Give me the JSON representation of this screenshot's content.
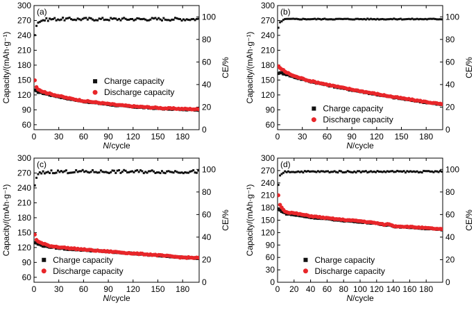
{
  "colors": {
    "charge": "#111111",
    "discharge": "#e8262a",
    "ce": "#111111"
  },
  "chart_data": [
    {
      "type": "scatter",
      "panel_label": "(a)",
      "xlabel_italic": "N",
      "xlabel_rest": "/cycle",
      "ylabel_left": "Capacity/(mAh·g⁻¹)",
      "ylabel_right": "CE/%",
      "xlim": [
        0,
        200
      ],
      "ylim_left": [
        50,
        300
      ],
      "ylim_right": [
        0,
        110
      ],
      "xticks": [
        0,
        30,
        60,
        90,
        120,
        150,
        180
      ],
      "yticks_left": [
        60,
        90,
        120,
        150,
        180,
        210,
        240,
        270,
        300
      ],
      "yticks_right": [
        0,
        20,
        40,
        60,
        80,
        100
      ],
      "legend": {
        "position": "center",
        "charge": "Charge capacity",
        "discharge": "Discharge capacity"
      },
      "series": [
        {
          "name": "Charge capacity",
          "x": [
            1,
            5,
            10,
            20,
            40,
            60,
            80,
            100,
            120,
            140,
            160,
            180,
            200
          ],
          "y": [
            129,
            126,
            124,
            120,
            113,
            107,
            103,
            99,
            96,
            94,
            92,
            91,
            90
          ]
        },
        {
          "name": "Discharge capacity",
          "x": [
            1,
            2,
            5,
            10,
            20,
            40,
            60,
            80,
            100,
            120,
            140,
            160,
            180,
            200
          ],
          "y": [
            150,
            138,
            132,
            127,
            122,
            114,
            108,
            104,
            100,
            97,
            95,
            93,
            92,
            91
          ]
        },
        {
          "name": "CE",
          "axis": "right",
          "x": [
            1,
            3,
            6,
            10,
            20,
            50,
            100,
            150,
            200
          ],
          "y": [
            85,
            93,
            96,
            97,
            98,
            98,
            98,
            98,
            98
          ],
          "noise": 1.3
        }
      ]
    },
    {
      "type": "scatter",
      "panel_label": "(b)",
      "xlabel_italic": "N",
      "xlabel_rest": "/cycle",
      "ylabel_left": "Capacity/(mAh·g⁻¹)",
      "ylabel_right": "CE/%",
      "xlim": [
        0,
        200
      ],
      "ylim_left": [
        50,
        300
      ],
      "ylim_right": [
        0,
        110
      ],
      "xticks": [
        0,
        30,
        60,
        90,
        120,
        150,
        180
      ],
      "yticks_left": [
        60,
        90,
        120,
        150,
        180,
        210,
        240,
        270,
        300
      ],
      "yticks_right": [
        0,
        20,
        40,
        60,
        80,
        100
      ],
      "legend": {
        "position": "bottom-right",
        "charge": "Charge capacity",
        "discharge": "Discharge capacity"
      },
      "series": [
        {
          "name": "Charge capacity",
          "x": [
            1,
            5,
            10,
            20,
            40,
            60,
            80,
            100,
            120,
            140,
            160,
            180,
            200
          ],
          "y": [
            164,
            164,
            162,
            156,
            147,
            140,
            133,
            127,
            121,
            115,
            110,
            105,
            100
          ]
        },
        {
          "name": "Discharge capacity",
          "x": [
            1,
            2,
            5,
            10,
            20,
            40,
            60,
            80,
            100,
            120,
            140,
            160,
            180,
            200
          ],
          "y": [
            178,
            176,
            172,
            166,
            158,
            148,
            141,
            134,
            128,
            122,
            116,
            111,
            106,
            101
          ]
        },
        {
          "name": "CE",
          "axis": "right",
          "x": [
            1,
            3,
            6,
            10,
            20,
            50,
            100,
            150,
            200
          ],
          "y": [
            90,
            95,
            97,
            98,
            98,
            98,
            98,
            98,
            98
          ],
          "noise": 0.4
        }
      ]
    },
    {
      "type": "scatter",
      "panel_label": "(c)",
      "xlabel_italic": "N",
      "xlabel_rest": "/cycle",
      "ylabel_left": "Capacity/(mAh·g⁻¹)",
      "ylabel_right": "CE/%",
      "xlim": [
        0,
        200
      ],
      "ylim_left": [
        50,
        300
      ],
      "ylim_right": [
        0,
        110
      ],
      "xticks": [
        0,
        30,
        60,
        90,
        120,
        150,
        180
      ],
      "yticks_left": [
        60,
        90,
        120,
        150,
        180,
        210,
        240,
        270,
        300
      ],
      "yticks_right": [
        0,
        20,
        40,
        60,
        80,
        100
      ],
      "legend": {
        "position": "bottom-left",
        "charge": "Charge capacity",
        "discharge": "Discharge capacity"
      },
      "series": [
        {
          "name": "Charge capacity",
          "x": [
            1,
            5,
            10,
            20,
            40,
            60,
            80,
            100,
            120,
            140,
            160,
            180,
            200
          ],
          "y": [
            130,
            127,
            124,
            121,
            117,
            115,
            113,
            110,
            108,
            105,
            103,
            100,
            98
          ]
        },
        {
          "name": "Discharge capacity",
          "x": [
            1,
            2,
            5,
            10,
            20,
            40,
            60,
            80,
            100,
            120,
            140,
            160,
            180,
            200
          ],
          "y": [
            146,
            138,
            132,
            128,
            123,
            119,
            116,
            113,
            111,
            108,
            106,
            103,
            100,
            99
          ]
        },
        {
          "name": "CE",
          "axis": "right",
          "x": [
            1,
            3,
            6,
            10,
            20,
            50,
            100,
            150,
            200
          ],
          "y": [
            85,
            93,
            96,
            97,
            98,
            98,
            98,
            98,
            98
          ],
          "noise": 1.4
        }
      ]
    },
    {
      "type": "scatter",
      "panel_label": "(d)",
      "xlabel_italic": "N",
      "xlabel_rest": "/cycle",
      "ylabel_left": "Capacity/(mAh·g⁻¹)",
      "ylabel_right": "CE/%",
      "xlim": [
        0,
        200
      ],
      "ylim_left": [
        0,
        300
      ],
      "ylim_right": [
        0,
        110
      ],
      "xticks": [
        0,
        20,
        40,
        60,
        80,
        100,
        120,
        140,
        160,
        180
      ],
      "yticks_left": [
        0,
        30,
        60,
        90,
        120,
        150,
        180,
        210,
        240,
        270,
        300
      ],
      "yticks_right": [
        0,
        20,
        40,
        60,
        80,
        100
      ],
      "legend": {
        "position": "bottom-center",
        "charge": "Charge capacity",
        "discharge": "Discharge capacity"
      },
      "series": [
        {
          "name": "Charge capacity",
          "x": [
            1,
            5,
            10,
            20,
            40,
            60,
            80,
            100,
            120,
            130,
            135,
            140,
            160,
            180,
            200
          ],
          "y": [
            176,
            172,
            166,
            163,
            157,
            153,
            149,
            146,
            142,
            138,
            140,
            135,
            133,
            130,
            127
          ]
        },
        {
          "name": "Discharge capacity",
          "x": [
            1,
            2,
            5,
            10,
            20,
            40,
            60,
            80,
            100,
            120,
            130,
            135,
            140,
            160,
            180,
            200
          ],
          "y": [
            210,
            192,
            180,
            170,
            167,
            160,
            155,
            151,
            148,
            143,
            139,
            141,
            136,
            134,
            131,
            128
          ]
        },
        {
          "name": "CE",
          "axis": "right",
          "x": [
            1,
            3,
            6,
            10,
            20,
            50,
            100,
            150,
            200
          ],
          "y": [
            86,
            94,
            97,
            98,
            98,
            98,
            98,
            98,
            98
          ],
          "noise": 0.7
        }
      ]
    }
  ]
}
